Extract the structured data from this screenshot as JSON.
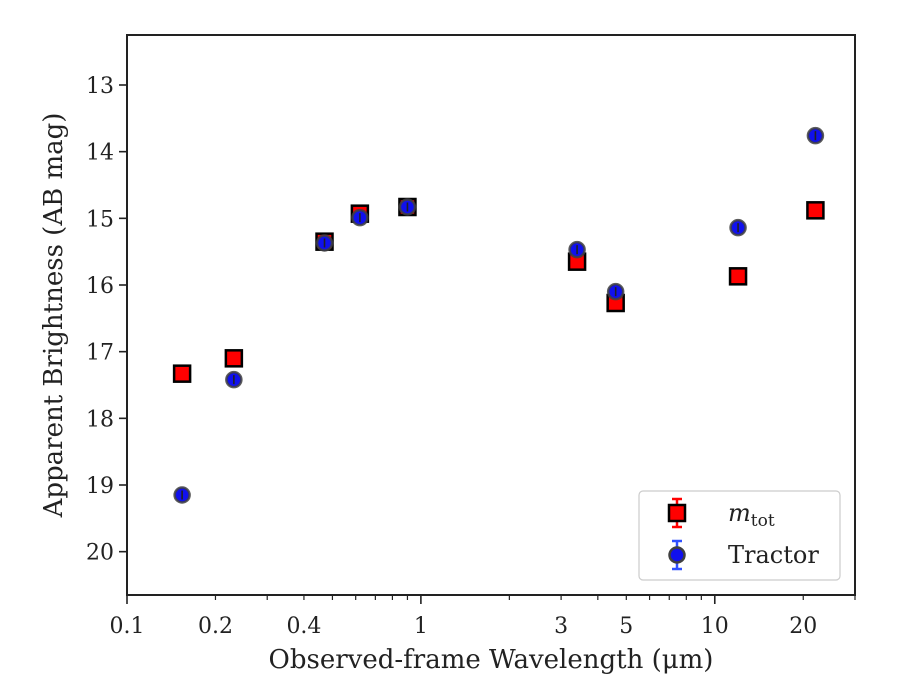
{
  "chart_data": {
    "type": "scatter",
    "title": "",
    "xlabel": "Observed-frame Wavelength (μm)",
    "ylabel": "Apparent Brightness (AB mag)",
    "xscale": "log",
    "xlim": [
      0.1,
      30
    ],
    "ylim": [
      20.65,
      12.25
    ],
    "y_inverted": true,
    "grid": false,
    "legend_position": "lower-right",
    "x_ticks": [
      {
        "value": 0.1,
        "label": "0.1"
      },
      {
        "value": 0.2,
        "label": "0.2"
      },
      {
        "value": 0.4,
        "label": "0.4"
      },
      {
        "value": 1,
        "label": "1"
      },
      {
        "value": 3,
        "label": "3"
      },
      {
        "value": 5,
        "label": "5"
      },
      {
        "value": 10,
        "label": "10"
      },
      {
        "value": 20,
        "label": "20"
      }
    ],
    "y_ticks": [
      13,
      14,
      15,
      16,
      17,
      18,
      19,
      20
    ],
    "series": [
      {
        "name": "m_tot",
        "label_main": "m",
        "label_sub": "tot",
        "marker": "square",
        "color": "#ff0000",
        "edge_color": "#000000",
        "error_color": "#ff0000",
        "x": [
          0.154,
          0.231,
          0.47,
          0.62,
          0.9,
          3.4,
          4.6,
          12,
          22
        ],
        "y": [
          17.33,
          17.1,
          15.35,
          14.93,
          14.83,
          15.65,
          16.27,
          15.87,
          14.88
        ]
      },
      {
        "name": "Tractor",
        "label_main": "Tractor",
        "marker": "circle",
        "color": "#1010ee",
        "edge_color": "#404040",
        "error_color": "#3050ff",
        "x": [
          0.154,
          0.231,
          0.47,
          0.62,
          0.9,
          3.4,
          4.6,
          12,
          22
        ],
        "y": [
          19.15,
          17.42,
          15.37,
          14.99,
          14.83,
          15.47,
          16.1,
          15.14,
          13.76
        ]
      }
    ]
  }
}
